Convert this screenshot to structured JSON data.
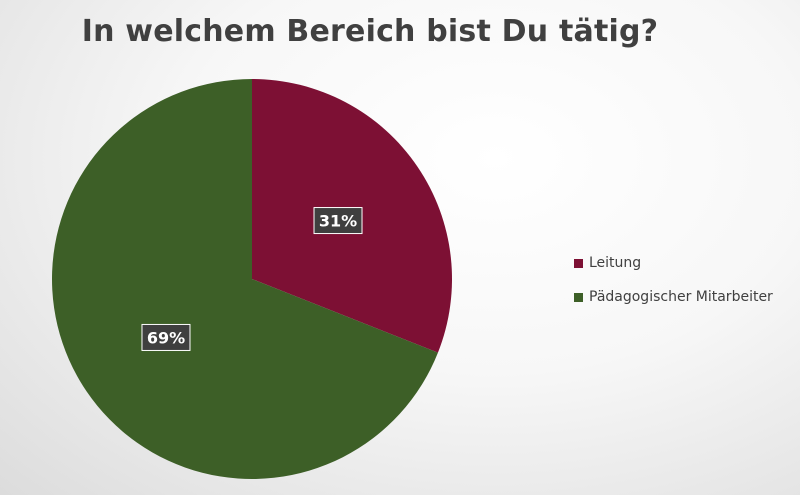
{
  "chart_data": {
    "type": "pie",
    "title": "In welchem Bereich bist Du tätig?",
    "slices": [
      {
        "label": "Leitung",
        "value": 31,
        "display": "31%",
        "color": "#7d1034"
      },
      {
        "label": "Pädagogischer Mitarbeiter",
        "value": 69,
        "display": "69%",
        "color": "#3d5f27"
      }
    ],
    "start_angle": "12 o'clock",
    "direction": "clockwise",
    "legend_position": "right"
  }
}
